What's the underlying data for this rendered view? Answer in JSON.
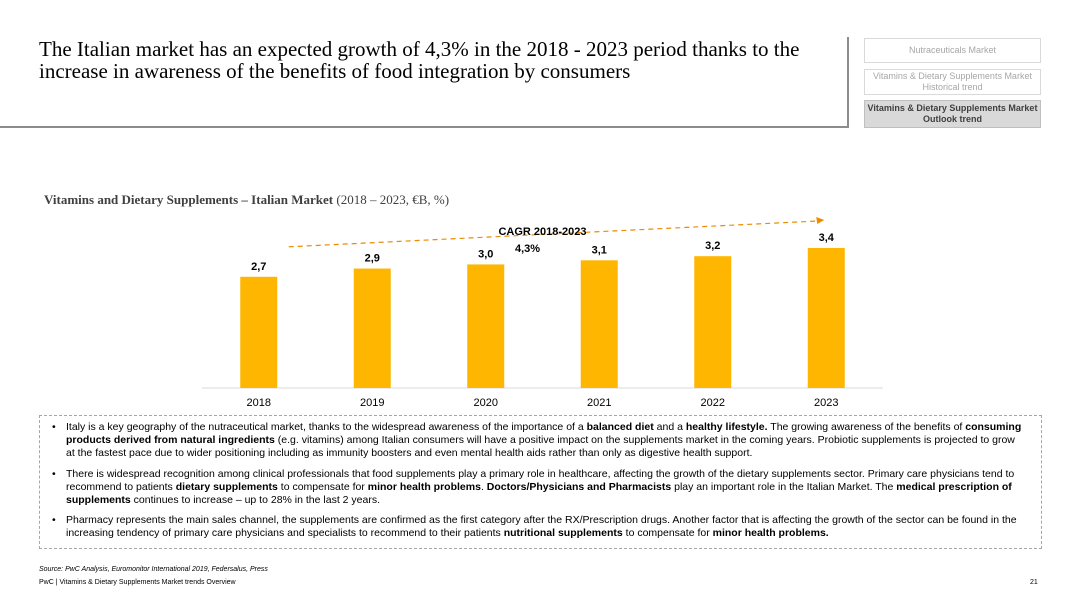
{
  "header": {
    "title": "The Italian market has an expected growth of 4,3% in the 2018 - 2023 period thanks to the increase in awareness of the benefits of food integration by consumers"
  },
  "nav": {
    "item1": "Nutraceuticals Market",
    "item2": "Vitamins & Dietary Supplements Market Historical trend",
    "item3": "Vitamins & Dietary Supplements Market Outlook trend"
  },
  "chart_header": {
    "bold": "Vitamins and Dietary Supplements – Italian Market",
    "normal": " (2018 – 2023, €B, %)"
  },
  "chart_data": {
    "type": "bar",
    "categories": [
      "2018",
      "2019",
      "2020",
      "2021",
      "2022",
      "2023"
    ],
    "values": [
      2.7,
      2.9,
      3.0,
      3.1,
      3.2,
      3.4
    ],
    "value_labels": [
      "2,7",
      "2,9",
      "3,0",
      "3,1",
      "3,2",
      "3,4"
    ],
    "bar_color": "#ffb600",
    "ylim": [
      0,
      4.2
    ],
    "cagr_label": "CAGR 2018-2023",
    "cagr_value": "4,3%",
    "arrow_color": "#eb8c00"
  },
  "bullets": [
    [
      {
        "t": "Italy is a key geography of the nutraceutical market, thanks to the widespread awareness of the importance of a ",
        "b": false
      },
      {
        "t": "balanced diet",
        "b": true
      },
      {
        "t": " and a ",
        "b": false
      },
      {
        "t": "healthy lifestyle.",
        "b": true
      },
      {
        "t": "  The growing awareness of the benefits of ",
        "b": false
      },
      {
        "t": "consuming products derived from natural ingredients",
        "b": true
      },
      {
        "t": " (e.g. vitamins) among Italian consumers will have a positive impact on the supplements market in the coming years. Probiotic supplements is projected to grow at the fastest pace due to wider positioning including as immunity boosters and even mental health aids rather than only as digestive health support.",
        "b": false
      }
    ],
    [
      {
        "t": "There is widespread recognition among clinical professionals that food supplements play a primary role in healthcare, affecting the growth of the dietary supplements sector. Primary care physicians tend to recommend to patients ",
        "b": false
      },
      {
        "t": "dietary supplements",
        "b": true
      },
      {
        "t": " to compensate for ",
        "b": false
      },
      {
        "t": "minor health problems",
        "b": true
      },
      {
        "t": ". ",
        "b": false
      },
      {
        "t": "Doctors/Physicians and Pharmacists",
        "b": true
      },
      {
        "t": " play an important role in the Italian Market. The ",
        "b": false
      },
      {
        "t": "medical prescription of supplements",
        "b": true
      },
      {
        "t": " continues to increase – up to 28% in the last 2 years.",
        "b": false
      }
    ],
    [
      {
        "t": "Pharmacy represents the main sales channel, the supplements are confirmed as the first category after the RX/Prescription drugs. Another factor that is affecting the growth of the sector can be found in the increasing tendency of primary care physicians and specialists to recommend to their patients ",
        "b": false
      },
      {
        "t": "nutritional supplements",
        "b": true
      },
      {
        "t": " to compensate for ",
        "b": false
      },
      {
        "t": "minor health problems.",
        "b": true
      }
    ]
  ],
  "footer": {
    "source": "Source: PwC Analysis, Euromonitor International 2019, Federsalus, Press",
    "text": "PwC | Vitamins & Dietary Supplements Market trends Overview",
    "page": "21"
  }
}
